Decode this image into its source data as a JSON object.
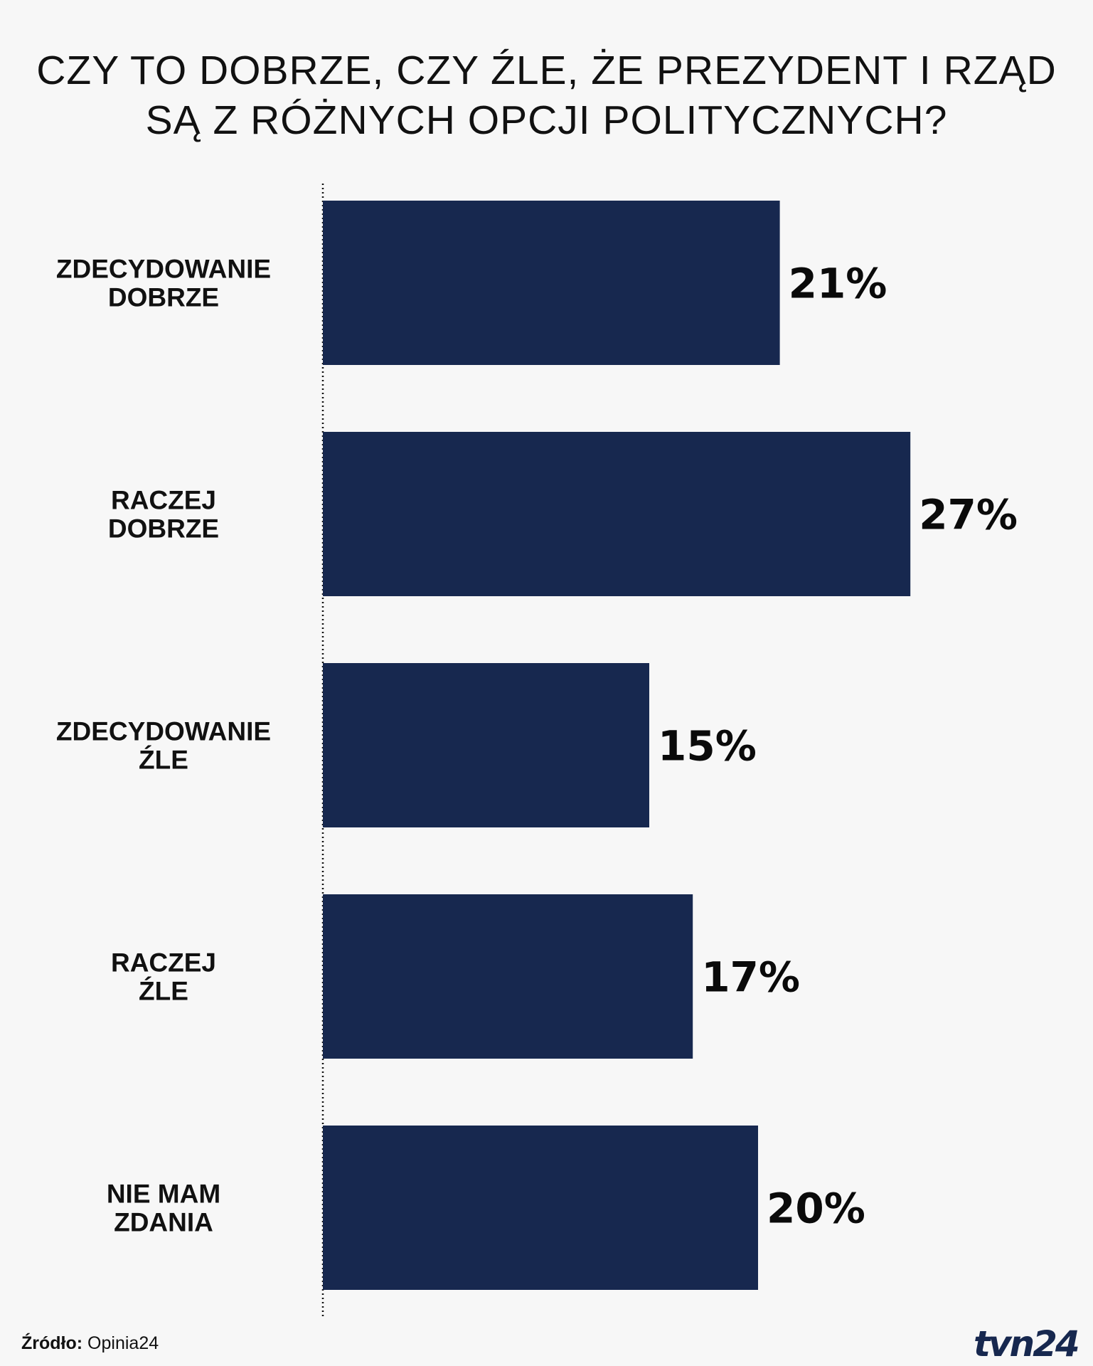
{
  "title": {
    "line1": "CZY TO DOBRZE, CZY ŹLE, ŻE PREZYDENT I RZĄD",
    "line2": "SĄ Z RÓŻNYCH OPCJI POLITYCZNYCH?"
  },
  "chart_data": {
    "type": "bar",
    "orientation": "horizontal",
    "title": "CZY TO DOBRZE, CZY ŹLE, ŻE PREZYDENT I RZĄD SĄ Z RÓŻNYCH OPCJI POLITYCZNYCH?",
    "categories": [
      [
        "ZDECYDOWANIE",
        "DOBRZE"
      ],
      [
        "RACZEJ",
        "DOBRZE"
      ],
      [
        "ZDECYDOWANIE",
        "ŹLE"
      ],
      [
        "RACZEJ",
        "ŹLE"
      ],
      [
        "NIE MAM",
        "ZDANIA"
      ]
    ],
    "values": [
      21,
      27,
      15,
      17,
      20
    ],
    "value_labels": [
      "21%",
      "27%",
      "15%",
      "17%",
      "20%"
    ],
    "unit": "%",
    "bar_color": "#17284f",
    "grid": false,
    "legend": "none"
  },
  "source": {
    "label": "Źródło:",
    "value": "Opinia24"
  },
  "logo": {
    "text": "tvn24",
    "color": "#17284f"
  }
}
